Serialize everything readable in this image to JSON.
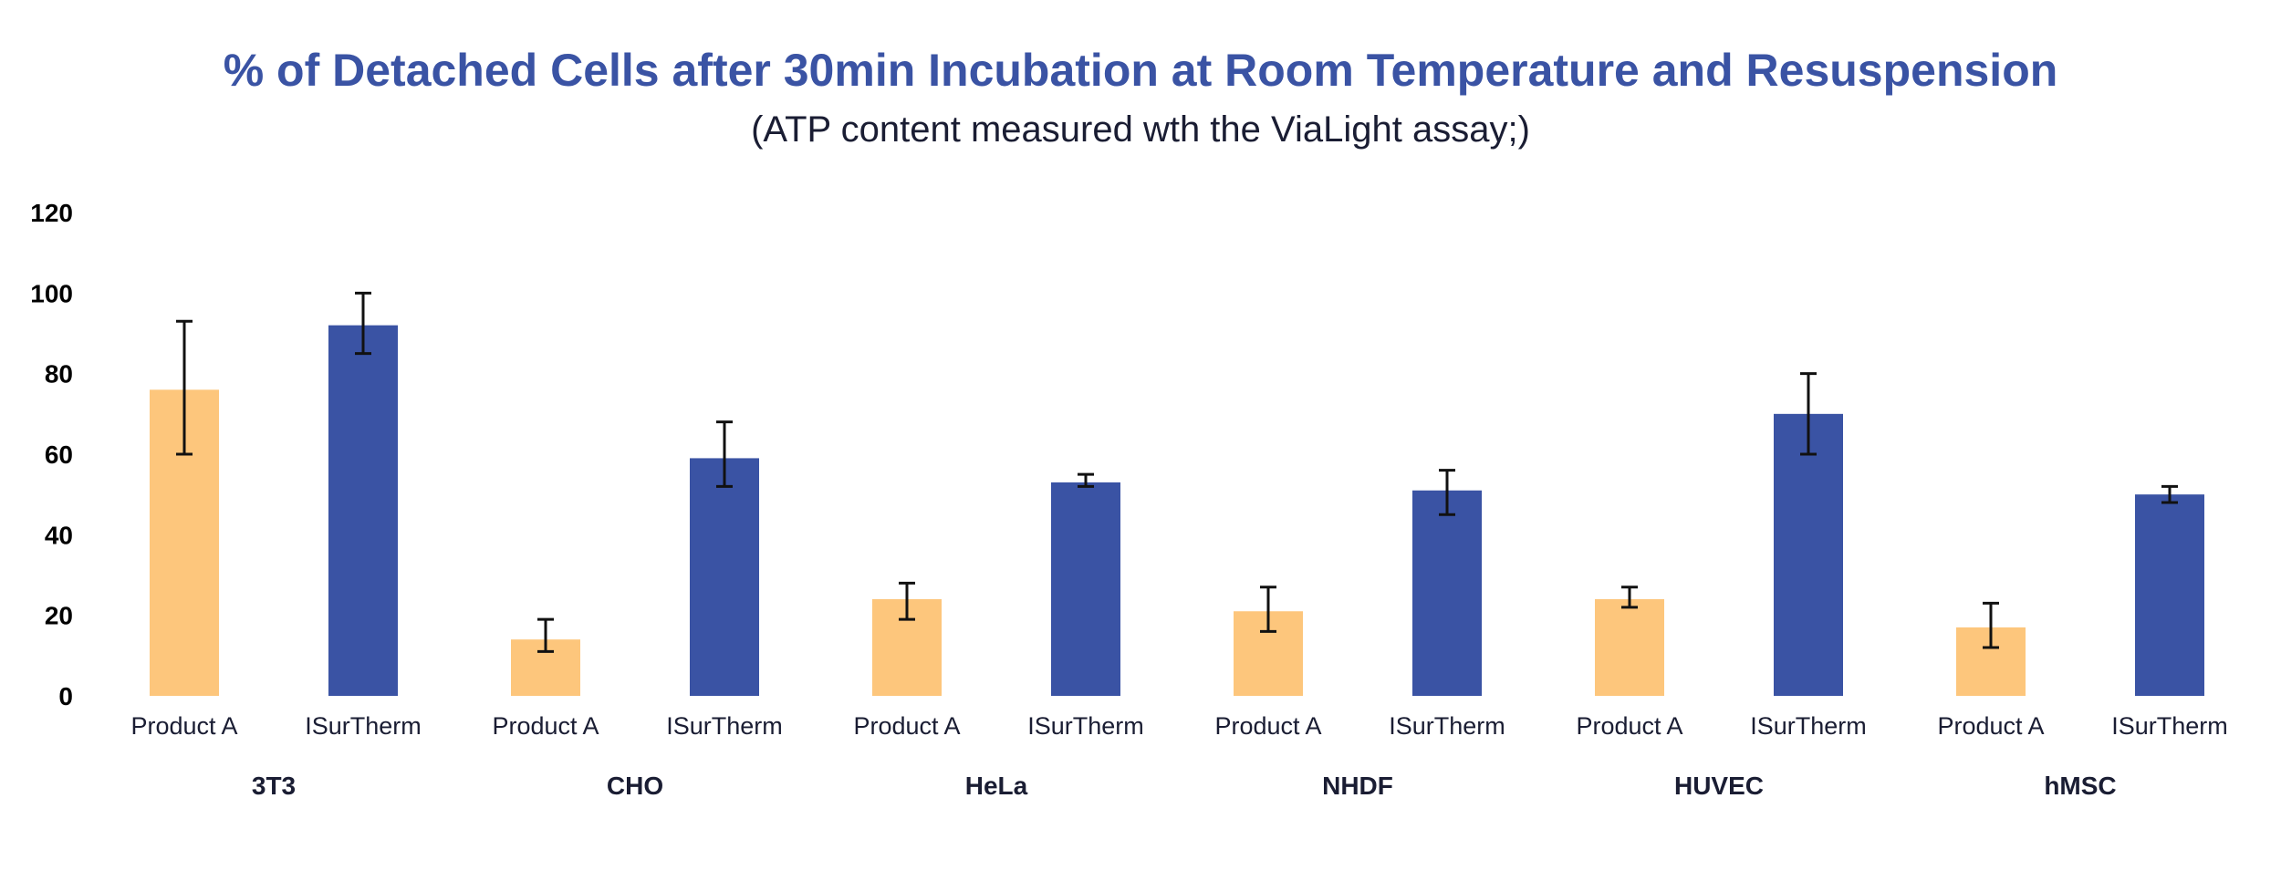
{
  "chart_data": {
    "type": "bar",
    "title": "% of Detached Cells after 30min Incubation at Room Temperature and Resuspension",
    "subtitle": "(ATP content measured wth the ViaLight assay;)",
    "xlabel": "",
    "ylabel": "",
    "ylim": [
      0,
      120
    ],
    "yticks": [
      0,
      20,
      40,
      60,
      80,
      100,
      120
    ],
    "grid": false,
    "legend": "none",
    "groups": [
      "3T3",
      "CHO",
      "HeLa",
      "NHDF",
      "HUVEC",
      "hMSC"
    ],
    "series": [
      {
        "name": "Product A",
        "color": "#fdc67c",
        "values": [
          76,
          14,
          24,
          21,
          24,
          17
        ],
        "error_low": [
          60,
          11,
          19,
          16,
          22,
          12
        ],
        "error_high": [
          93,
          19,
          28,
          27,
          27,
          23
        ]
      },
      {
        "name": "ISurTherm",
        "color": "#3a53a4",
        "values": [
          92,
          59,
          53,
          51,
          70,
          50
        ],
        "error_low": [
          85,
          52,
          52,
          45,
          60,
          48
        ],
        "error_high": [
          100,
          68,
          55,
          56,
          80,
          52
        ]
      }
    ]
  }
}
